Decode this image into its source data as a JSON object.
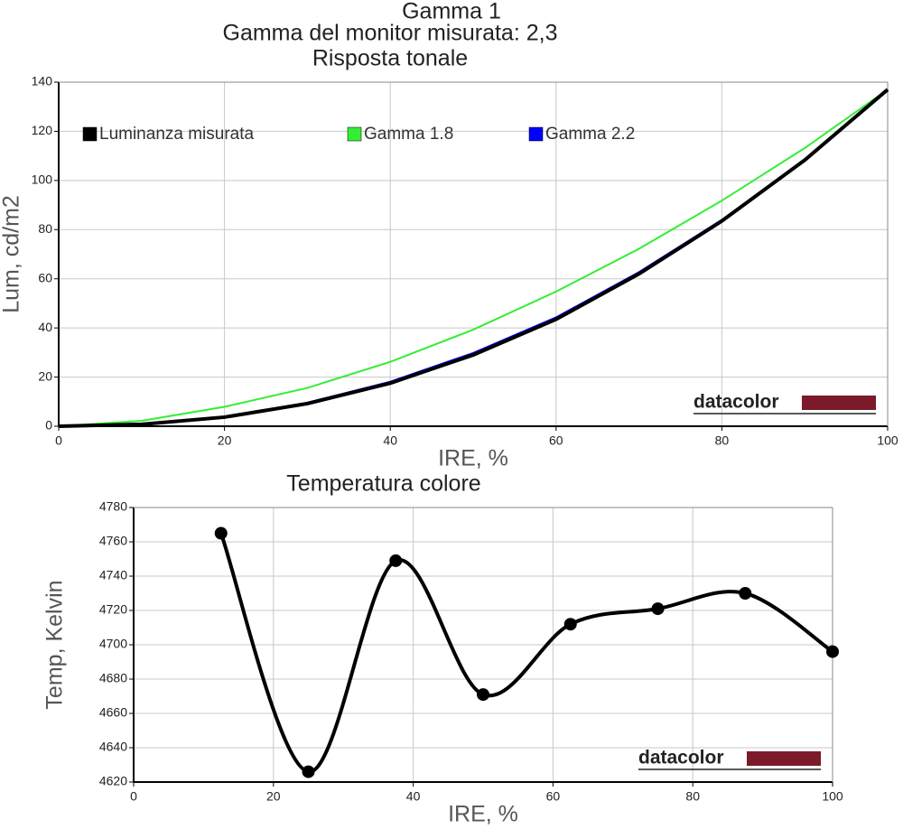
{
  "chart_data": [
    {
      "type": "line",
      "title": "Gamma 1",
      "subtitles": [
        "Gamma del monitor misurata: 2,3",
        "Risposta tonale"
      ],
      "x_label": "IRE, %",
      "y_label": "Lum, cd/m2",
      "logo": "datacolor",
      "x": [
        0,
        10,
        20,
        30,
        40,
        50,
        60,
        70,
        80,
        90,
        100
      ],
      "series": [
        {
          "name": "Luminanza misurata",
          "color": "#000000",
          "values": [
            0,
            0.8,
            3.7,
            9.2,
            17.5,
            29,
            43.5,
            62,
            83.5,
            108.3,
            137
          ]
        },
        {
          "name": "Gamma 1.8",
          "color": "#33ee33",
          "values": [
            0,
            2.2,
            7.9,
            15.6,
            26.2,
            39.3,
            54.8,
            72.2,
            91.8,
            113.2,
            137
          ]
        },
        {
          "name": "Gamma 2.2",
          "color": "#0000ff",
          "values": [
            0,
            0.9,
            3.9,
            9.6,
            18.1,
            29.8,
            44.3,
            62.7,
            84,
            108.6,
            137
          ]
        }
      ],
      "xlim": [
        0,
        100
      ],
      "ylim": [
        0,
        140
      ],
      "xticks": [
        0,
        20,
        40,
        60,
        80,
        100
      ],
      "yticks": [
        0,
        20,
        40,
        60,
        80,
        100,
        120,
        140
      ],
      "grid": true,
      "legend": "top"
    },
    {
      "type": "smooth-line",
      "title": "Temperatura colore",
      "x_label": "IRE, %",
      "y_label": "Temp, Kelvin",
      "logo": "datacolor",
      "x": [
        12.5,
        25,
        37.5,
        50,
        62.5,
        75,
        87.5,
        100
      ],
      "series": [
        {
          "color": "#000000",
          "values": [
            4765,
            4626,
            4749,
            4671,
            4712,
            4721,
            4730,
            4696
          ]
        }
      ],
      "xlim": [
        0,
        100
      ],
      "ylim": [
        4620,
        4780
      ],
      "xticks": [
        0,
        20,
        40,
        60,
        80,
        100
      ],
      "yticks": [
        4620,
        4640,
        4660,
        4680,
        4700,
        4720,
        4740,
        4760,
        4780
      ],
      "grid": true,
      "markers": true
    }
  ]
}
